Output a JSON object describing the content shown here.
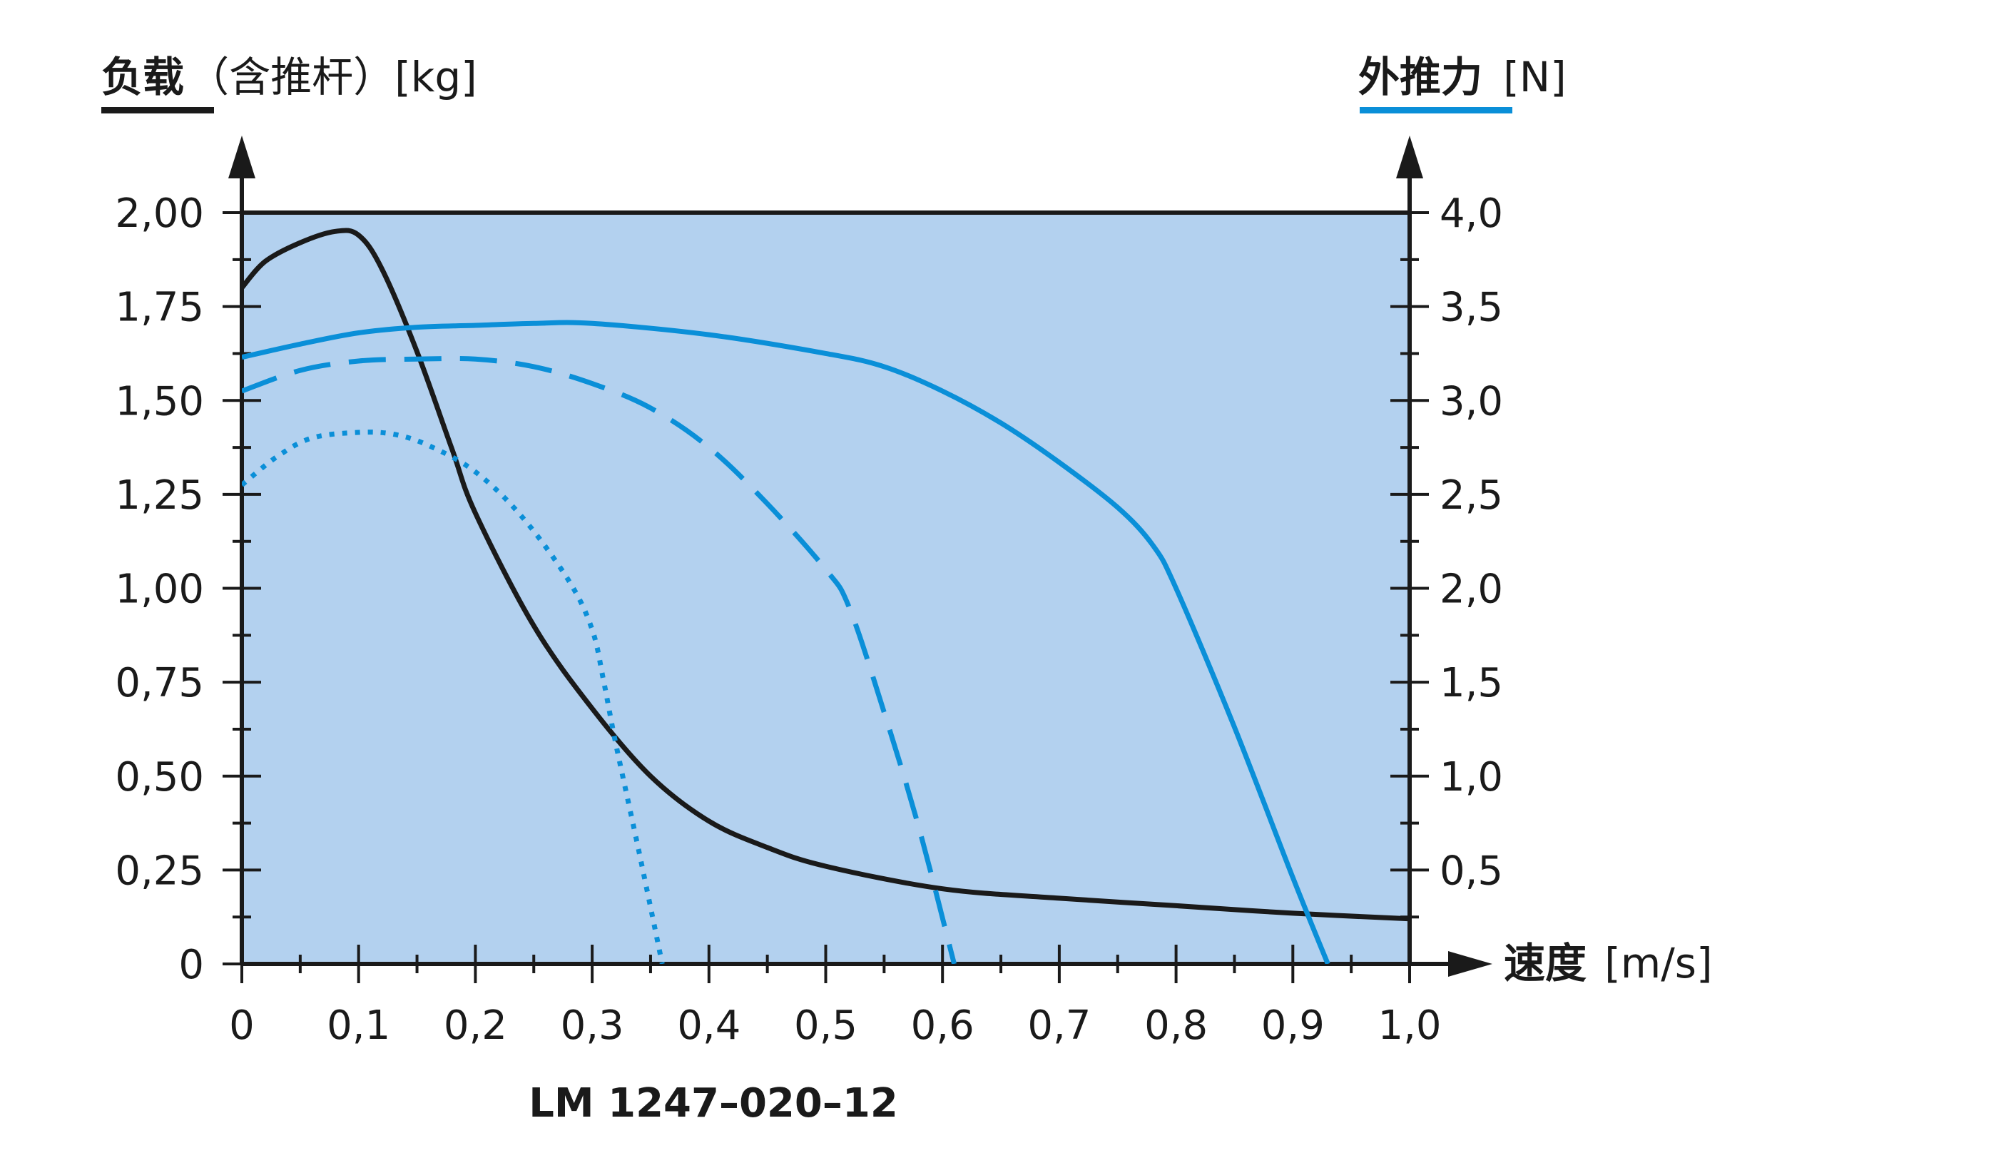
{
  "chart_data": {
    "type": "line",
    "model": "LM 1247–020–12",
    "x_axis": {
      "label_bold": "速度",
      "label_unit": "[m/s]",
      "range": [
        0,
        1.0
      ],
      "ticks": [
        0,
        0.1,
        0.2,
        0.3,
        0.4,
        0.5,
        0.6,
        0.7,
        0.8,
        0.9,
        1.0
      ],
      "tick_labels": [
        "0",
        "0,1",
        "0,2",
        "0,3",
        "0,4",
        "0,5",
        "0,6",
        "0,7",
        "0,8",
        "0,9",
        "1,0"
      ]
    },
    "y_left": {
      "label_bold": "负载",
      "label_rest": "（含推杆）[kg]",
      "legend_color": "#1a1a1a",
      "range": [
        0,
        2.0
      ],
      "ticks": [
        0,
        0.25,
        0.5,
        0.75,
        1.0,
        1.25,
        1.5,
        1.75,
        2.0
      ],
      "tick_labels": [
        "0",
        "0,25",
        "0,50",
        "0,75",
        "1,00",
        "1,25",
        "1,50",
        "1,75",
        "2,00"
      ]
    },
    "y_right": {
      "label_bold": "外推力",
      "label_unit": "[N]",
      "legend_color": "#0a8fd8",
      "range": [
        0,
        4.0
      ],
      "ticks": [
        0.5,
        1.0,
        1.5,
        2.0,
        2.5,
        3.0,
        3.5,
        4.0
      ],
      "tick_labels": [
        "0,5",
        "1,0",
        "1,5",
        "2,0",
        "2,5",
        "3,0",
        "3,5",
        "4,0"
      ]
    },
    "grid": false,
    "colors": {
      "plot_background": "#b3d1ef",
      "load_curve": "#1a1a1a",
      "force_curves": "#0a8fd8"
    },
    "series": [
      {
        "axis": "left",
        "style": "solid",
        "color": "#1a1a1a",
        "x": [
          0,
          0.02,
          0.05,
          0.08,
          0.1,
          0.12,
          0.15,
          0.18,
          0.2,
          0.25,
          0.3,
          0.35,
          0.4,
          0.45,
          0.5,
          0.6,
          0.7,
          0.8,
          0.9,
          1.0
        ],
        "y": [
          1.8,
          1.87,
          1.92,
          1.95,
          1.94,
          1.85,
          1.63,
          1.37,
          1.2,
          0.9,
          0.68,
          0.5,
          0.38,
          0.31,
          0.26,
          0.2,
          0.175,
          0.155,
          0.135,
          0.12
        ]
      },
      {
        "axis": "right",
        "style": "solid",
        "color": "#0a8fd8",
        "x": [
          0,
          0.05,
          0.1,
          0.15,
          0.2,
          0.25,
          0.3,
          0.4,
          0.5,
          0.55,
          0.6,
          0.65,
          0.7,
          0.75,
          0.78,
          0.8,
          0.85,
          0.9,
          0.93
        ],
        "y": [
          3.23,
          3.3,
          3.36,
          3.39,
          3.4,
          3.41,
          3.41,
          3.35,
          3.25,
          3.18,
          3.05,
          2.88,
          2.67,
          2.43,
          2.23,
          2.0,
          1.26,
          0.46,
          0.0
        ]
      },
      {
        "axis": "right",
        "style": "dashed",
        "color": "#0a8fd8",
        "x": [
          0,
          0.05,
          0.1,
          0.15,
          0.2,
          0.25,
          0.3,
          0.35,
          0.4,
          0.45,
          0.5,
          0.52,
          0.55,
          0.58,
          0.61
        ],
        "y": [
          3.05,
          3.16,
          3.21,
          3.22,
          3.22,
          3.18,
          3.09,
          2.96,
          2.75,
          2.45,
          2.1,
          1.9,
          1.34,
          0.72,
          0.0
        ]
      },
      {
        "axis": "right",
        "style": "dotted",
        "color": "#0a8fd8",
        "x": [
          0,
          0.03,
          0.06,
          0.1,
          0.13,
          0.16,
          0.2,
          0.24,
          0.28,
          0.3,
          0.31,
          0.32,
          0.34,
          0.36
        ],
        "y": [
          2.55,
          2.7,
          2.8,
          2.83,
          2.82,
          2.76,
          2.62,
          2.38,
          2.04,
          1.78,
          1.5,
          1.18,
          0.6,
          0.0
        ]
      }
    ]
  }
}
